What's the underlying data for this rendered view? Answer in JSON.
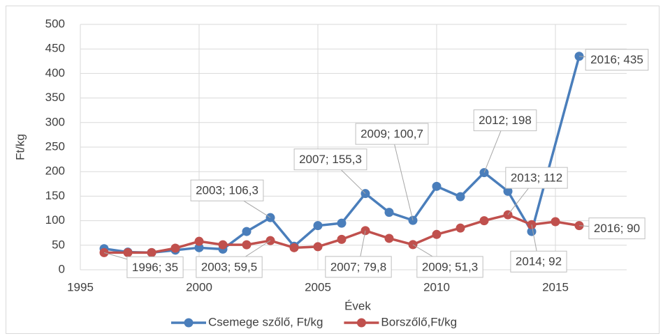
{
  "chart_data": {
    "type": "line",
    "x_label": "Évek",
    "y_label": "Ft/kg",
    "xlim": [
      1995,
      2018
    ],
    "xticks": [
      1995,
      2000,
      2005,
      2010,
      2015
    ],
    "ylim": [
      0,
      500
    ],
    "yticks": [
      0,
      50,
      100,
      150,
      200,
      250,
      300,
      350,
      400,
      450,
      500
    ],
    "grid": true,
    "legend": "bottom",
    "series": [
      {
        "name": "Csemege szőlő, Ft/kg",
        "color": "#4a7ebb",
        "x": [
          1996,
          1997,
          1998,
          1999,
          2000,
          2001,
          2002,
          2003,
          2004,
          2005,
          2006,
          2007,
          2008,
          2009,
          2010,
          2011,
          2012,
          2013,
          2014,
          2016
        ],
        "values": [
          43,
          36,
          35,
          40,
          45,
          42,
          78,
          106.3,
          48,
          90,
          95,
          155.3,
          117,
          100.7,
          170,
          149,
          198,
          160,
          78,
          435
        ],
        "value_labels": [
          null,
          null,
          null,
          null,
          null,
          null,
          null,
          "2003; 106,3",
          null,
          null,
          null,
          "2007; 155,3",
          null,
          "2009; 100,7",
          null,
          null,
          "2012; 198",
          null,
          null,
          "2016; 435"
        ]
      },
      {
        "name": "Borszőlő,Ft/kg",
        "color": "#c0504d",
        "x": [
          1996,
          1997,
          1998,
          1999,
          2000,
          2001,
          2002,
          2003,
          2004,
          2005,
          2006,
          2007,
          2008,
          2009,
          2010,
          2011,
          2012,
          2013,
          2014,
          2015,
          2016
        ],
        "values": [
          35,
          35,
          35,
          44,
          58,
          51,
          51,
          59.5,
          45,
          47,
          62,
          79.8,
          64,
          51.3,
          72,
          85,
          100,
          112,
          92,
          98,
          90
        ],
        "value_labels": [
          "1996; 35",
          null,
          null,
          null,
          null,
          null,
          null,
          "2003; 59,5",
          null,
          null,
          null,
          "2007; 79,8",
          null,
          "2009; 51,3",
          null,
          null,
          null,
          "2013; 112",
          "2014; 92",
          null,
          "2016; 90"
        ]
      }
    ]
  }
}
